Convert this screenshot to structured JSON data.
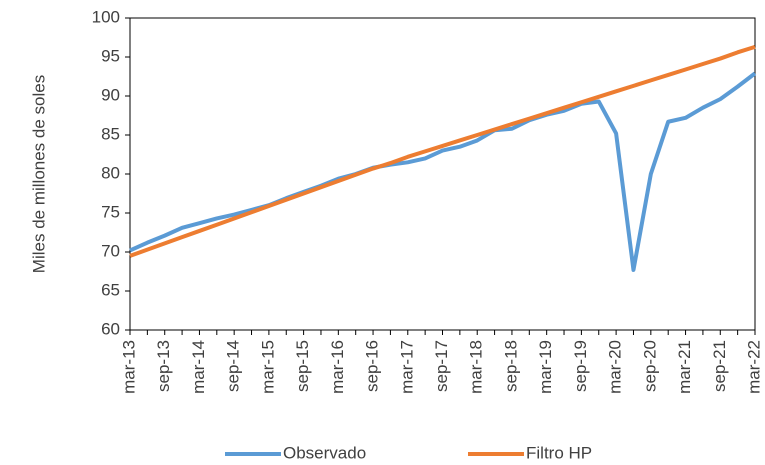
{
  "chart_data": {
    "type": "line",
    "y_label": "Miles de millones de soles",
    "categories": [
      "mar-13",
      null,
      "sep-13",
      null,
      "mar-14",
      null,
      "sep-14",
      null,
      "mar-15",
      null,
      "sep-15",
      null,
      "mar-16",
      null,
      "sep-16",
      null,
      "mar-17",
      null,
      "sep-17",
      null,
      "mar-18",
      null,
      "sep-18",
      null,
      "mar-19",
      null,
      "sep-19",
      null,
      "mar-20",
      null,
      "sep-20",
      null,
      "mar-21",
      null,
      "sep-21",
      null,
      "mar-22"
    ],
    "series": [
      {
        "name": "Observado",
        "color": "#5b9bd5",
        "values": [
          70.2,
          71.2,
          72.1,
          73.1,
          73.7,
          74.3,
          74.8,
          75.4,
          76.0,
          76.9,
          77.7,
          78.5,
          79.4,
          80.0,
          80.8,
          81.2,
          81.5,
          82.0,
          83.0,
          83.5,
          84.3,
          85.6,
          85.8,
          86.9,
          87.6,
          88.1,
          89.0,
          89.3,
          85.2,
          67.7,
          80.0,
          86.7,
          87.2,
          88.5,
          89.6,
          91.2,
          92.9
        ]
      },
      {
        "name": "Filtro HP",
        "color": "#ed7d31",
        "values": [
          69.5,
          70.3,
          71.1,
          71.9,
          72.7,
          73.5,
          74.3,
          75.1,
          75.9,
          76.7,
          77.5,
          78.3,
          79.1,
          79.9,
          80.7,
          81.4,
          82.2,
          82.9,
          83.6,
          84.3,
          85.0,
          85.7,
          86.4,
          87.1,
          87.8,
          88.5,
          89.2,
          89.9,
          90.6,
          91.3,
          92.0,
          92.7,
          93.4,
          94.1,
          94.8,
          95.6,
          96.3
        ]
      }
    ],
    "ylim": [
      60,
      100
    ],
    "yticks": [
      60,
      65,
      70,
      75,
      80,
      85,
      90,
      95,
      100
    ],
    "grid": false
  }
}
